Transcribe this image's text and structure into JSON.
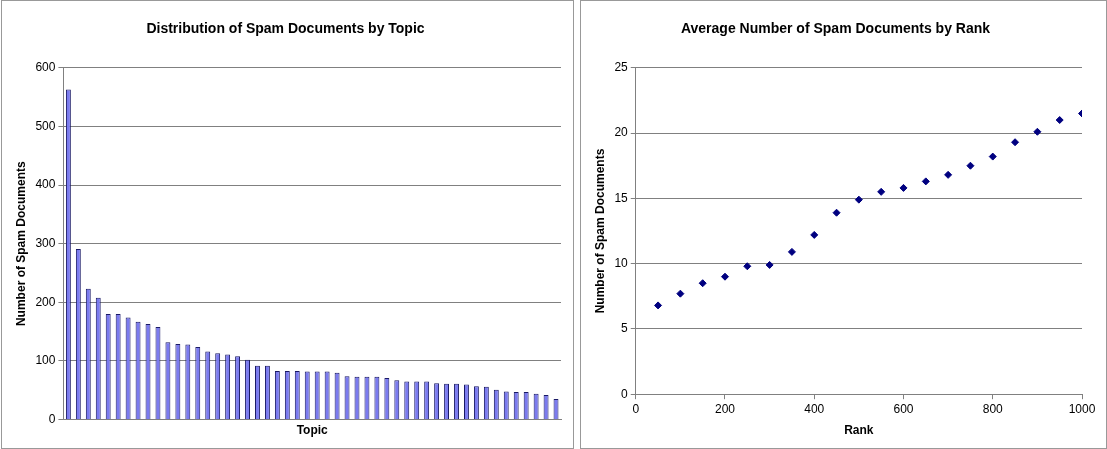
{
  "chart_data": [
    {
      "type": "bar",
      "title": "Distribution of Spam Documents by Topic",
      "xlabel": "Topic",
      "ylabel": "Number of Spam Documents",
      "categories": [
        null,
        null,
        null,
        null,
        null,
        null,
        null,
        null,
        null,
        null,
        null,
        null,
        null,
        null,
        null,
        null,
        null,
        null,
        null,
        null,
        null,
        null,
        null,
        null,
        null,
        null,
        null,
        null,
        null,
        null,
        null,
        null,
        null,
        null,
        null,
        null,
        null,
        null,
        null,
        null,
        null,
        null,
        null,
        null,
        null,
        null,
        null,
        null,
        null,
        null
      ],
      "series": [
        {
          "color": "#7b7bef",
          "values": [
            563,
            291,
            223,
            208,
            180,
            180,
            174,
            167,
            163,
            158,
            132,
            129,
            128,
            124,
            116,
            113,
            111,
            108,
            102,
            92,
            92,
            83,
            83,
            83,
            82,
            82,
            82,
            80,
            74,
            73,
            73,
            73,
            71,
            67,
            65,
            65,
            65,
            62,
            61,
            61,
            60,
            57,
            56,
            51,
            48,
            47,
            47,
            44,
            42,
            35
          ]
        }
      ],
      "ylim": [
        0,
        600
      ],
      "yticks": [
        0,
        100,
        200,
        300,
        400,
        500,
        600
      ],
      "grid": "y",
      "legend": false,
      "tick_labels": "y"
    },
    {
      "type": "scatter",
      "title": "Average Number of Spam Documents by Rank",
      "xlabel": "Rank",
      "ylabel": "Number of Spam Documents",
      "x": [
        50,
        100,
        150,
        200,
        250,
        300,
        350,
        400,
        450,
        500,
        550,
        600,
        650,
        700,
        750,
        800,
        850,
        900,
        950,
        1000
      ],
      "series": [
        {
          "color": "#000080",
          "values": [
            6.8,
            7.7,
            8.5,
            9.0,
            9.8,
            9.9,
            10.9,
            12.2,
            13.9,
            14.9,
            15.5,
            15.8,
            16.3,
            16.8,
            17.5,
            18.2,
            19.3,
            20.1,
            21.0,
            21.5
          ]
        }
      ],
      "xlim": [
        0,
        1000
      ],
      "xticks": [
        0,
        200,
        400,
        600,
        800,
        1000
      ],
      "ylim": [
        0,
        25
      ],
      "yticks": [
        0,
        5,
        10,
        15,
        20,
        25
      ],
      "grid": "y",
      "legend": false,
      "marker": "diamond"
    }
  ]
}
